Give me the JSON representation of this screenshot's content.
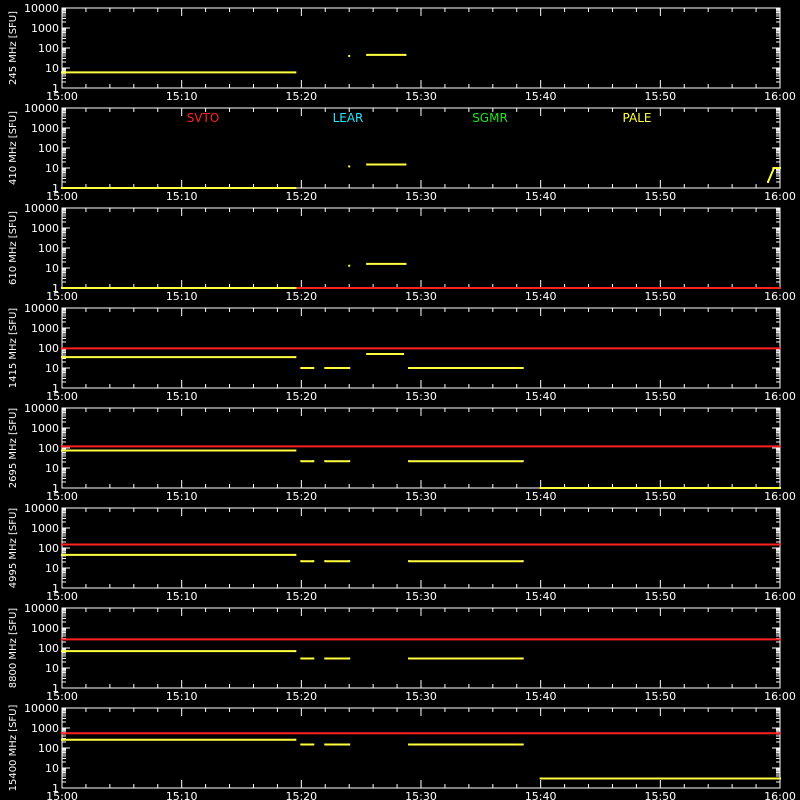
{
  "chart_data": {
    "type": "line",
    "background": "#000000",
    "axis_color": "#ffffff",
    "y_scale": "log",
    "ylim": [
      1,
      10000
    ],
    "xlim": [
      "15:00",
      "16:00"
    ],
    "x_ticks": [
      "15:00",
      "15:10",
      "15:20",
      "15:30",
      "15:40",
      "15:50",
      "16:00"
    ],
    "y_ticks": [
      "1",
      "10",
      "100",
      "1000",
      "10000"
    ],
    "legend": [
      {
        "label": "SVTO",
        "color": "#ff2020"
      },
      {
        "label": "LEAR",
        "color": "#20e8ff"
      },
      {
        "label": "SGMR",
        "color": "#20e020"
      },
      {
        "label": "PALE",
        "color": "#ffff40"
      }
    ],
    "panels": [
      {
        "ylabel": "245  MHz  [SFU]",
        "series": [
          {
            "name": "PALE",
            "color": "#ffff40",
            "points": [
              [
                "15:00",
                6
              ],
              [
                "15:19.5",
                6
              ],
              [
                null,
                null
              ],
              [
                "15:24",
                40
              ],
              [
                null,
                null
              ],
              [
                "15:25.5",
                45
              ],
              [
                "15:28.7",
                45
              ]
            ]
          }
        ]
      },
      {
        "ylabel": "410  MHz  [SFU]",
        "series": [
          {
            "name": "PALE",
            "color": "#ffff40",
            "points": [
              [
                "15:00",
                1
              ],
              [
                "15:19.5",
                1
              ],
              [
                null,
                null
              ],
              [
                "15:24",
                12
              ],
              [
                null,
                null
              ],
              [
                "15:25.5",
                15
              ],
              [
                "15:28.7",
                15
              ],
              [
                null,
                null
              ],
              [
                "15:59",
                2
              ],
              [
                "15:59.5",
                10
              ],
              [
                "16:00",
                10
              ]
            ]
          }
        ]
      },
      {
        "ylabel": "610  MHz  [SFU]",
        "series": [
          {
            "name": "SVTO",
            "color": "#ff2020",
            "points": [
              [
                "15:19.5",
                1
              ],
              [
                "16:00",
                1
              ]
            ]
          },
          {
            "name": "PALE",
            "color": "#ffff40",
            "points": [
              [
                "15:00",
                1
              ],
              [
                "15:19.5",
                1
              ],
              [
                null,
                null
              ],
              [
                "15:24",
                13
              ],
              [
                null,
                null
              ],
              [
                "15:25.5",
                16
              ],
              [
                "15:28.7",
                16
              ]
            ]
          }
        ]
      },
      {
        "ylabel": "1415  MHz  [SFU]",
        "series": [
          {
            "name": "SVTO",
            "color": "#ff2020",
            "points": [
              [
                "15:00",
                95
              ],
              [
                "16:00",
                95
              ]
            ]
          },
          {
            "name": "PALE",
            "color": "#ffff40",
            "points": [
              [
                "15:00",
                35
              ],
              [
                "15:19.5",
                35
              ],
              [
                null,
                null
              ],
              [
                "15:20",
                10
              ],
              [
                "15:21",
                10
              ],
              [
                null,
                null
              ],
              [
                "15:22",
                10
              ],
              [
                "15:24",
                10
              ],
              [
                null,
                null
              ],
              [
                "15:25.5",
                50
              ],
              [
                "15:28.5",
                50
              ],
              [
                null,
                null
              ],
              [
                "15:29",
                10
              ],
              [
                "15:38.5",
                10
              ]
            ]
          }
        ]
      },
      {
        "ylabel": "2695  MHz  [SFU]",
        "series": [
          {
            "name": "SVTO",
            "color": "#ff2020",
            "points": [
              [
                "15:00",
                120
              ],
              [
                "16:00",
                120
              ]
            ]
          },
          {
            "name": "PALE",
            "color": "#ffff40",
            "points": [
              [
                "15:00",
                75
              ],
              [
                "15:19.5",
                75
              ],
              [
                null,
                null
              ],
              [
                "15:20",
                22
              ],
              [
                "15:21",
                22
              ],
              [
                null,
                null
              ],
              [
                "15:22",
                22
              ],
              [
                "15:24",
                22
              ],
              [
                null,
                null
              ],
              [
                "15:29",
                22
              ],
              [
                "15:38.5",
                22
              ],
              [
                null,
                null
              ],
              [
                "15:40",
                1
              ],
              [
                "16:00",
                1
              ]
            ]
          }
        ]
      },
      {
        "ylabel": "4995  MHz  [SFU]",
        "series": [
          {
            "name": "SVTO",
            "color": "#ff2020",
            "points": [
              [
                "15:00",
                150
              ],
              [
                "16:00",
                150
              ]
            ]
          },
          {
            "name": "PALE",
            "color": "#ffff40",
            "points": [
              [
                "15:00",
                45
              ],
              [
                "15:19.5",
                45
              ],
              [
                null,
                null
              ],
              [
                "15:20",
                22
              ],
              [
                "15:21",
                22
              ],
              [
                null,
                null
              ],
              [
                "15:22",
                22
              ],
              [
                "15:24",
                22
              ],
              [
                null,
                null
              ],
              [
                "15:29",
                22
              ],
              [
                "15:38.5",
                22
              ]
            ]
          }
        ]
      },
      {
        "ylabel": "8800  MHz  [SFU]",
        "series": [
          {
            "name": "SVTO",
            "color": "#ff2020",
            "points": [
              [
                "15:00",
                270
              ],
              [
                "16:00",
                270
              ]
            ]
          },
          {
            "name": "PALE",
            "color": "#ffff40",
            "points": [
              [
                "15:00",
                70
              ],
              [
                "15:19.5",
                70
              ],
              [
                null,
                null
              ],
              [
                "15:20",
                30
              ],
              [
                "15:21",
                30
              ],
              [
                null,
                null
              ],
              [
                "15:22",
                30
              ],
              [
                "15:24",
                30
              ],
              [
                null,
                null
              ],
              [
                "15:29",
                30
              ],
              [
                "15:38.5",
                30
              ]
            ]
          }
        ]
      },
      {
        "ylabel": "15400  MHz  [SFU]",
        "series": [
          {
            "name": "SVTO",
            "color": "#ff2020",
            "points": [
              [
                "15:00",
                550
              ],
              [
                "16:00",
                550
              ]
            ]
          },
          {
            "name": "PALE",
            "color": "#ffff40",
            "points": [
              [
                "15:00",
                260
              ],
              [
                "15:19.5",
                260
              ],
              [
                null,
                null
              ],
              [
                "15:20",
                150
              ],
              [
                "15:21",
                150
              ],
              [
                null,
                null
              ],
              [
                "15:22",
                150
              ],
              [
                "15:24",
                150
              ],
              [
                null,
                null
              ],
              [
                "15:29",
                150
              ],
              [
                "15:38.5",
                150
              ],
              [
                null,
                null
              ],
              [
                "15:40",
                3
              ],
              [
                "16:00",
                3
              ]
            ]
          }
        ]
      }
    ]
  }
}
